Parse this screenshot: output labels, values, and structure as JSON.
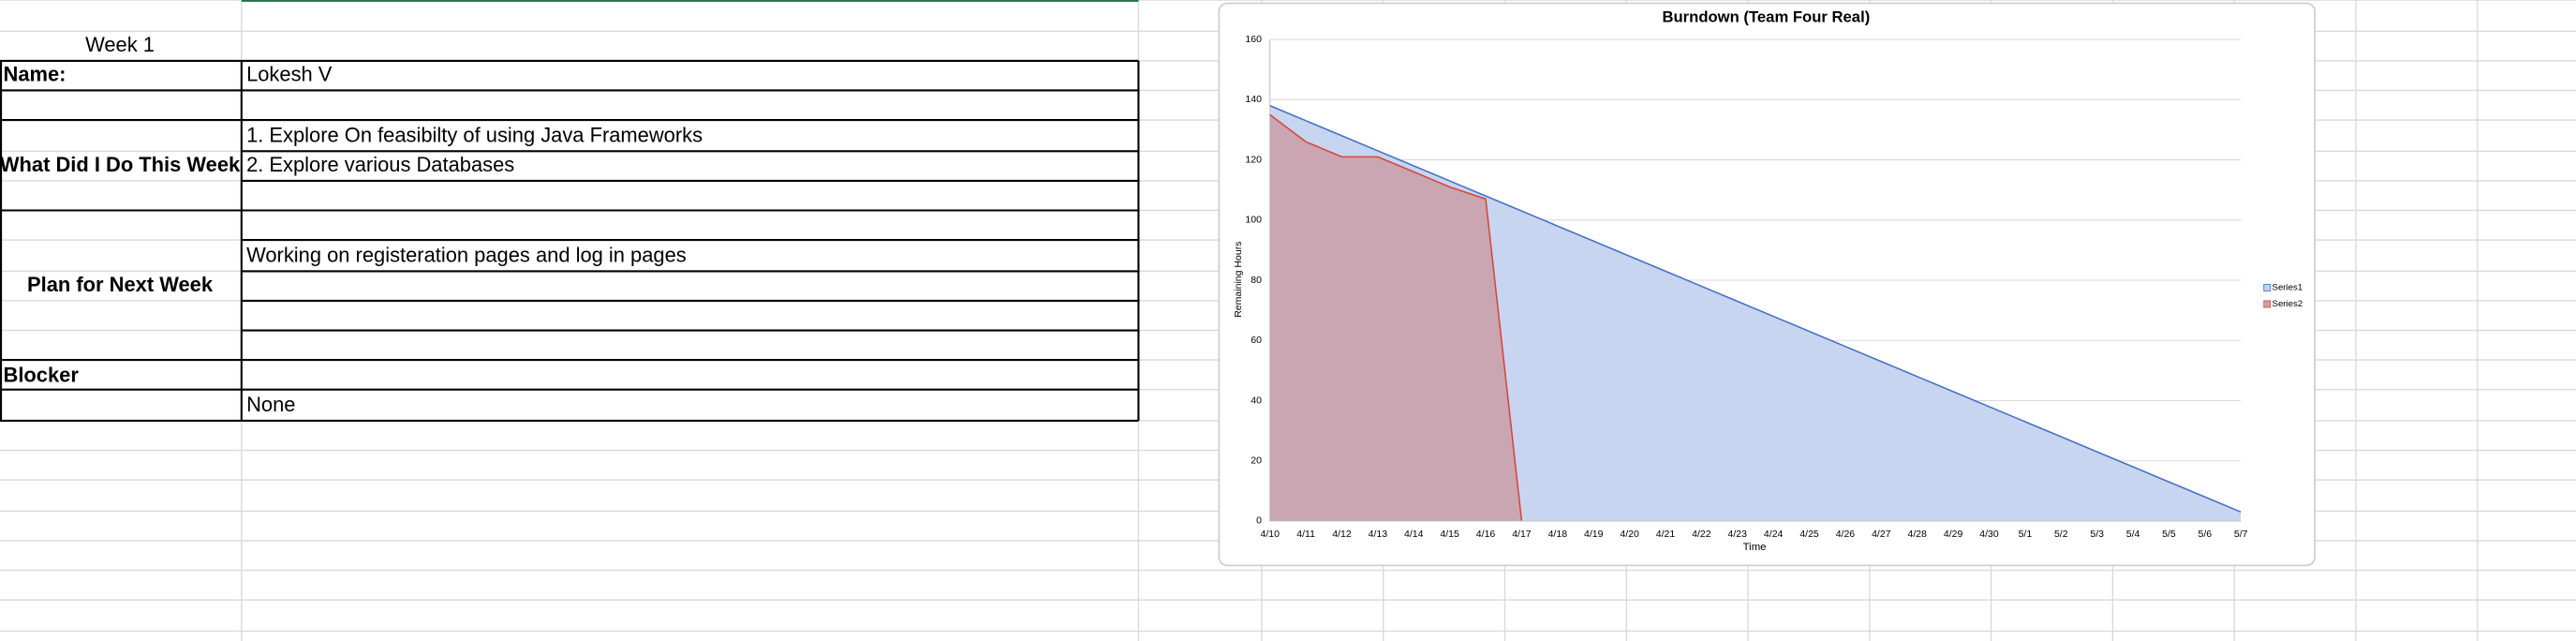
{
  "sheet": {
    "week": "Week 1",
    "name_label": "Name:",
    "name": "Lokesh V",
    "done_label": "What Did I Do This Week",
    "done": [
      "1. Explore On feasibilty of using Java Frameworks",
      "2. Explore various Databases"
    ],
    "plan_label": "Plan for Next Week",
    "plan": "Working on registeration pages and log in pages",
    "blocker_label": "Blocker",
    "blocker": "None"
  },
  "chart_data": {
    "type": "area",
    "title": "Burndown (Team Four Real)",
    "x_label": "Time",
    "y_label": "Remaining Hours",
    "categories": [
      "4/10",
      "4/11",
      "4/12",
      "4/13",
      "4/14",
      "4/15",
      "4/16",
      "4/17",
      "4/18",
      "4/19",
      "4/20",
      "4/21",
      "4/22",
      "4/23",
      "4/24",
      "4/25",
      "4/26",
      "4/27",
      "4/28",
      "4/29",
      "4/30",
      "5/1",
      "5/2",
      "5/3",
      "5/4",
      "5/5",
      "5/6",
      "5/7"
    ],
    "series": [
      {
        "name": "Series1",
        "color": "#4472c4",
        "fill": "#c5d3ef",
        "values": [
          138,
          133,
          128,
          123,
          118,
          113,
          108,
          103,
          98,
          93,
          88,
          83,
          78,
          73,
          68,
          63,
          58,
          53,
          48,
          43,
          38,
          33,
          28,
          23,
          18,
          13,
          8,
          3
        ]
      },
      {
        "name": "Series2",
        "color": "#d9453d",
        "fill": "#c9a3ad",
        "values": [
          135,
          126,
          121,
          121,
          116,
          111,
          107,
          0,
          null,
          null,
          null,
          null,
          null,
          null,
          null,
          null,
          null,
          null,
          null,
          null,
          null,
          null,
          null,
          null,
          null,
          null,
          null,
          null
        ]
      }
    ],
    "ylim": [
      0,
      160
    ],
    "yticks": [
      0,
      20,
      40,
      60,
      80,
      100,
      120,
      140,
      160
    ],
    "grid": true,
    "legend": "right"
  }
}
